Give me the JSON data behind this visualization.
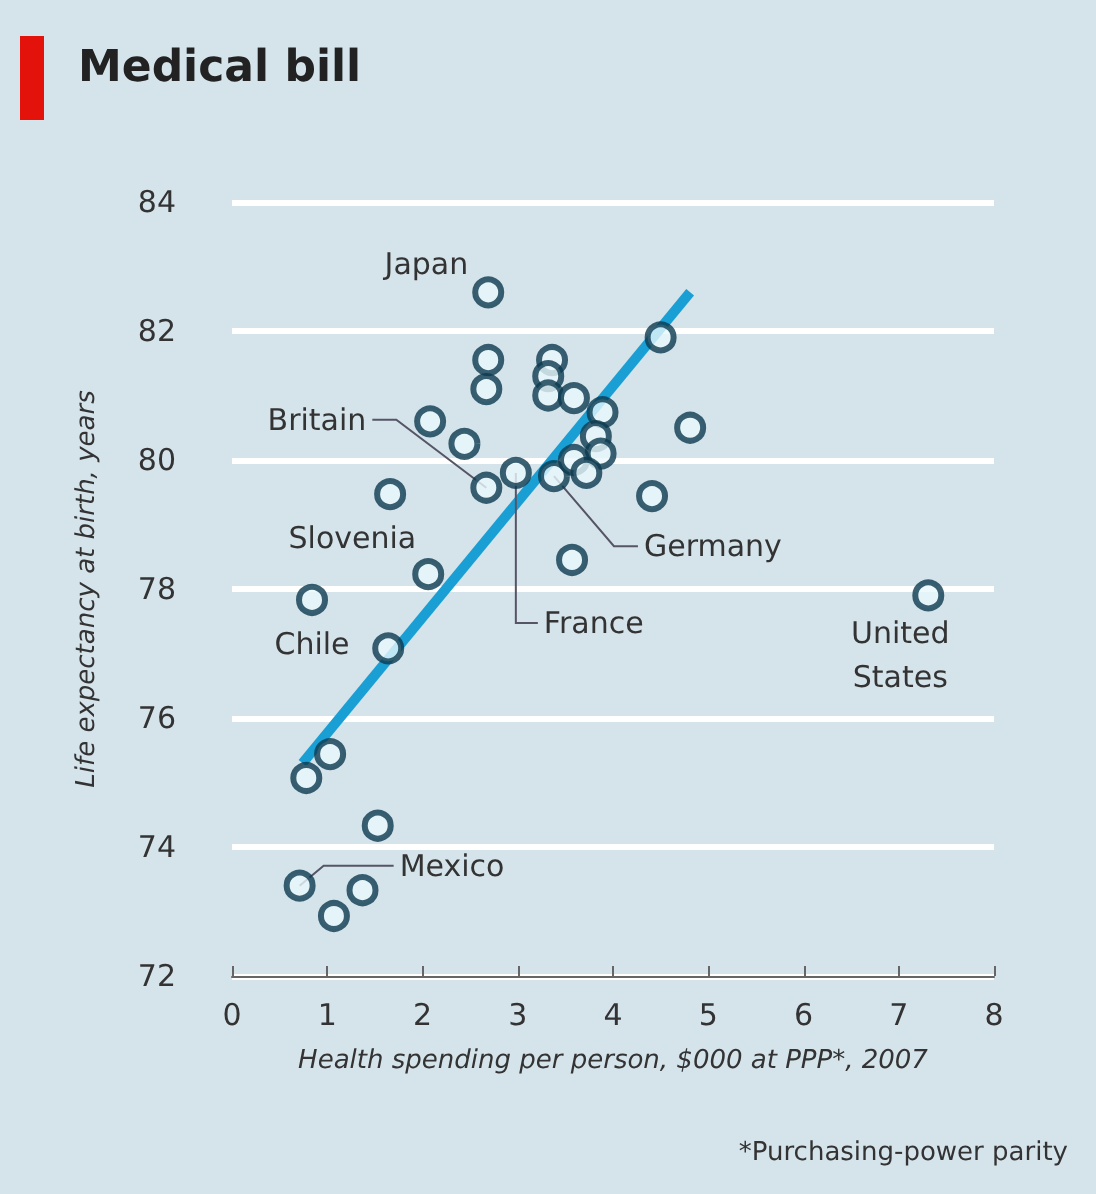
{
  "chart_data": {
    "type": "scatter",
    "title": "Medical bill",
    "xlabel": "Health spending per person, $000 at PPP*, 2007",
    "ylabel": "Life expectancy at birth, years",
    "xlim": [
      0,
      8
    ],
    "xticks": [
      0,
      1,
      2,
      3,
      4,
      5,
      6,
      7,
      8
    ],
    "ylim": [
      72,
      84
    ],
    "yticks": [
      72,
      74,
      76,
      78,
      80,
      82,
      84
    ],
    "grid": "y",
    "series": [
      {
        "marker": "circle",
        "color": "#0b3a4f",
        "x": [
          2.69,
          4.5,
          2.69,
          2.67,
          3.36,
          3.32,
          3.32,
          3.59,
          3.89,
          3.82,
          3.87,
          4.81,
          2.08,
          2.44,
          2.67,
          2.98,
          3.38,
          3.59,
          3.72,
          1.66,
          4.41,
          3.57,
          2.06,
          0.84,
          1.64,
          1.03,
          0.78,
          1.53,
          0.71,
          1.37,
          1.07,
          7.31
        ],
        "values": [
          82.6,
          81.9,
          81.55,
          81.1,
          81.55,
          81.3,
          81.0,
          80.96,
          80.74,
          80.37,
          80.1,
          80.5,
          80.6,
          80.25,
          79.57,
          79.8,
          79.75,
          80.0,
          79.8,
          79.47,
          79.44,
          78.45,
          78.23,
          77.83,
          77.08,
          75.44,
          75.07,
          74.33,
          73.4,
          73.33,
          72.93,
          77.9
        ]
      },
      {
        "type": "line",
        "color": "#1a9fd4",
        "x": [
          0.74,
          4.81
        ],
        "values": [
          75.3,
          82.6
        ]
      }
    ],
    "annotations": [
      {
        "text": "Japan",
        "x": 2.69,
        "y": 82.6
      },
      {
        "text": "Britain",
        "x": 2.67,
        "y": 79.57
      },
      {
        "text": "Slovenia",
        "x": 2.06,
        "y": 78.23
      },
      {
        "text": "Chile",
        "x": 0.84,
        "y": 77.83
      },
      {
        "text": "France",
        "x": 2.98,
        "y": 79.8
      },
      {
        "text": "Germany",
        "x": 3.38,
        "y": 79.75
      },
      {
        "text": "United\nStates",
        "x": 7.31,
        "y": 77.9
      },
      {
        "text": "Mexico",
        "x": 0.71,
        "y": 73.4
      },
      "*Purchasing-power parity"
    ]
  }
}
